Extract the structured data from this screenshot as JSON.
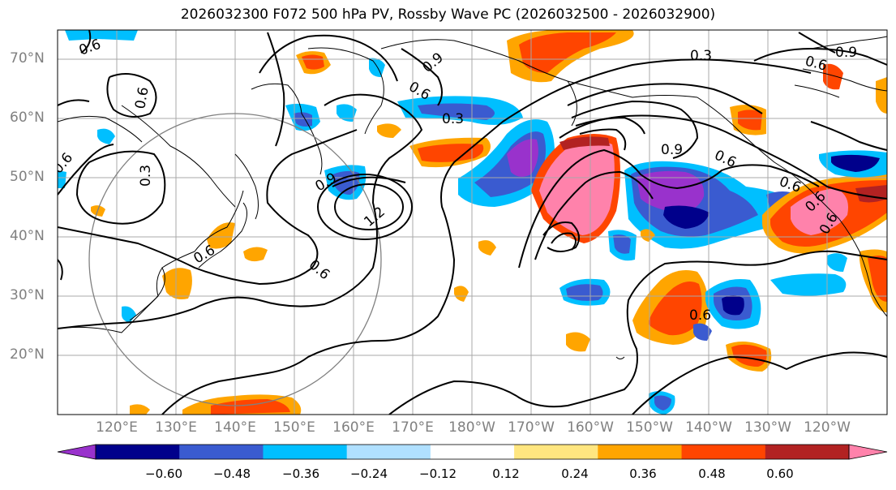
{
  "title": "2026032300 F072 500 hPa PV, Rossby Wave PC (2026032500 - 2026032900)",
  "lat_labels": [
    "70°N",
    "60°N",
    "50°N",
    "40°N",
    "30°N",
    "20°N"
  ],
  "lon_labels": [
    "120°E",
    "130°E",
    "140°E",
    "150°E",
    "160°E",
    "170°E",
    "180°W",
    "170°W",
    "160°W",
    "150°W",
    "140°W",
    "130°W",
    "120°W"
  ],
  "colorbar": {
    "ticks": [
      "−0.60",
      "−0.48",
      "−0.36",
      "−0.24",
      "−0.12",
      "0.12",
      "0.24",
      "0.36",
      "0.48",
      "0.60"
    ],
    "colors": [
      "#9932cc",
      "#00008b",
      "#3a5bd0",
      "#00bfff",
      "#b0e0ff",
      "#ffffff",
      "#ffe680",
      "#ffa500",
      "#ff4500",
      "#b22222",
      "#ff82ab"
    ]
  },
  "contour_labels": [
    "0.6",
    "0.6",
    "0.9",
    "0.6",
    "0.3",
    "0.3",
    "0.6",
    "0.6",
    "0.9",
    "0.6",
    "0.3",
    "1.2",
    "0.6",
    "0.9",
    "0.6",
    "0.6",
    "0.6",
    "0.6",
    "0.9",
    "0.6"
  ]
}
